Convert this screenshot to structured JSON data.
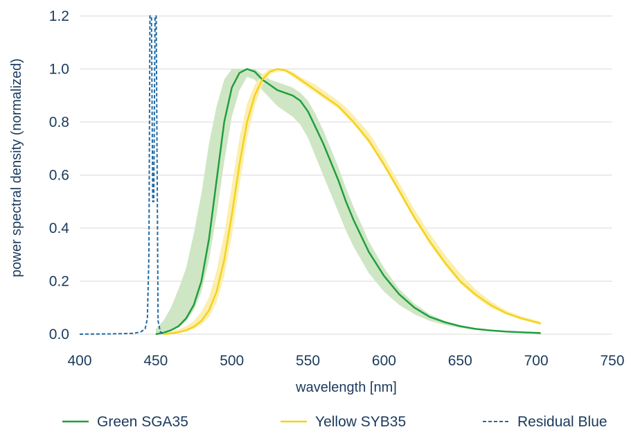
{
  "chart_data": {
    "type": "line",
    "xlabel": "wavelength [nm]",
    "ylabel": "power spectral density (normalized)",
    "xlim": [
      400,
      750
    ],
    "ylim": [
      0,
      1.2
    ],
    "xticks": [
      "400",
      "450",
      "500",
      "550",
      "600",
      "650",
      "700",
      "750"
    ],
    "yticks": [
      "0.0",
      "0.2",
      "0.4",
      "0.6",
      "0.8",
      "1.0",
      "1.2"
    ],
    "grid": "horizontal",
    "legend_position": "bottom",
    "series": [
      {
        "name": "Green SGA35",
        "color": "#1f9e3f",
        "band_color": "#cfe6c4",
        "style": "solid",
        "x": [
          450,
          455,
          460,
          465,
          470,
          475,
          480,
          485,
          490,
          495,
          500,
          505,
          510,
          515,
          520,
          525,
          530,
          535,
          540,
          545,
          550,
          555,
          560,
          565,
          570,
          575,
          580,
          590,
          600,
          610,
          620,
          630,
          640,
          650,
          660,
          670,
          680,
          690,
          700,
          703
        ],
        "y": [
          0.0,
          0.005,
          0.015,
          0.03,
          0.06,
          0.11,
          0.2,
          0.36,
          0.58,
          0.8,
          0.93,
          0.985,
          1.0,
          0.99,
          0.96,
          0.94,
          0.92,
          0.91,
          0.9,
          0.88,
          0.84,
          0.78,
          0.72,
          0.65,
          0.58,
          0.5,
          0.43,
          0.31,
          0.22,
          0.15,
          0.1,
          0.065,
          0.045,
          0.03,
          0.02,
          0.014,
          0.01,
          0.007,
          0.005,
          0.004
        ],
        "band_lower": [
          0.0,
          0.004,
          0.013,
          0.026,
          0.05,
          0.09,
          0.16,
          0.28,
          0.45,
          0.65,
          0.82,
          0.92,
          0.97,
          0.96,
          0.92,
          0.89,
          0.86,
          0.84,
          0.82,
          0.79,
          0.74,
          0.67,
          0.6,
          0.53,
          0.46,
          0.39,
          0.33,
          0.23,
          0.16,
          0.11,
          0.075,
          0.05,
          0.035,
          0.024,
          0.016,
          0.011,
          0.008,
          0.006,
          0.004,
          0.003
        ],
        "band_upper": [
          0.02,
          0.05,
          0.1,
          0.17,
          0.25,
          0.38,
          0.53,
          0.72,
          0.86,
          0.96,
          1.0,
          1.0,
          1.0,
          1.0,
          0.98,
          0.96,
          0.95,
          0.94,
          0.93,
          0.91,
          0.88,
          0.83,
          0.77,
          0.7,
          0.63,
          0.55,
          0.48,
          0.35,
          0.25,
          0.17,
          0.115,
          0.075,
          0.05,
          0.034,
          0.023,
          0.016,
          0.011,
          0.008,
          0.006,
          0.005
        ]
      },
      {
        "name": "Yellow SYB35",
        "color": "#f5d21b",
        "band_color": "#fbefb0",
        "style": "solid",
        "x": [
          455,
          460,
          465,
          470,
          475,
          480,
          485,
          490,
          495,
          500,
          505,
          510,
          515,
          520,
          525,
          530,
          535,
          540,
          545,
          550,
          555,
          560,
          565,
          570,
          575,
          580,
          590,
          600,
          610,
          620,
          630,
          640,
          650,
          660,
          670,
          680,
          690,
          700,
          703
        ],
        "y": [
          0.0,
          0.003,
          0.007,
          0.015,
          0.028,
          0.05,
          0.09,
          0.16,
          0.28,
          0.45,
          0.64,
          0.8,
          0.9,
          0.96,
          0.99,
          1.0,
          0.995,
          0.98,
          0.96,
          0.94,
          0.92,
          0.9,
          0.88,
          0.86,
          0.83,
          0.8,
          0.73,
          0.64,
          0.54,
          0.44,
          0.35,
          0.27,
          0.2,
          0.15,
          0.11,
          0.08,
          0.06,
          0.045,
          0.04
        ],
        "band_lower": [
          0.0,
          0.002,
          0.005,
          0.01,
          0.02,
          0.035,
          0.065,
          0.12,
          0.22,
          0.37,
          0.56,
          0.74,
          0.86,
          0.94,
          0.98,
          0.99,
          0.99,
          0.97,
          0.95,
          0.93,
          0.91,
          0.89,
          0.87,
          0.85,
          0.82,
          0.79,
          0.72,
          0.63,
          0.53,
          0.43,
          0.34,
          0.26,
          0.19,
          0.14,
          0.1,
          0.075,
          0.055,
          0.04,
          0.035
        ],
        "band_upper": [
          0.005,
          0.01,
          0.018,
          0.03,
          0.05,
          0.085,
          0.14,
          0.24,
          0.38,
          0.56,
          0.74,
          0.87,
          0.94,
          0.98,
          1.0,
          1.0,
          1.0,
          0.99,
          0.97,
          0.955,
          0.94,
          0.92,
          0.9,
          0.88,
          0.855,
          0.825,
          0.76,
          0.67,
          0.57,
          0.47,
          0.38,
          0.3,
          0.23,
          0.17,
          0.125,
          0.09,
          0.068,
          0.052,
          0.047
        ]
      },
      {
        "name": "Residual Blue",
        "color": "#1f6aa5",
        "style": "dashed",
        "x": [
          400,
          420,
          435,
          440,
          443,
          444.5,
          445.5,
          446.2,
          447.2,
          448,
          448.7,
          449.5,
          450.3,
          451.5,
          453,
          455
        ],
        "y": [
          0.0,
          0.001,
          0.003,
          0.008,
          0.02,
          0.06,
          0.3,
          1.2,
          1.2,
          0.5,
          0.5,
          1.2,
          1.2,
          0.05,
          0.01,
          0.0
        ]
      }
    ]
  }
}
